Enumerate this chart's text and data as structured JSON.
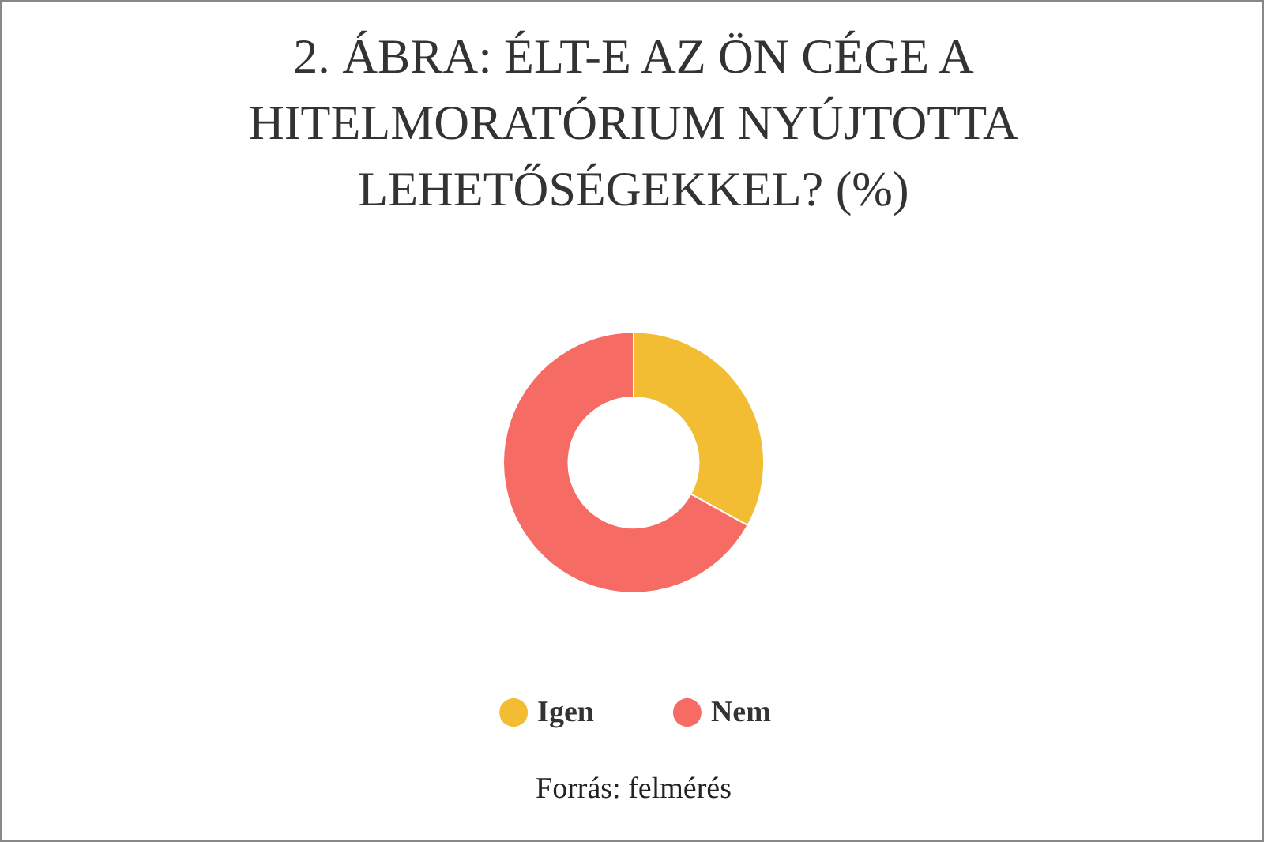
{
  "chart_data": {
    "type": "donut",
    "title": "2. ÁBRA: ÉLT-E AZ ÖN CÉGE A HITELMORATÓRIUM NYÚJTOTTA LEHETŐSÉGEKKEL? (%)",
    "categories": [
      "Igen",
      "Nem"
    ],
    "values": [
      33,
      67
    ],
    "colors": [
      "#f2bc33",
      "#f66b63"
    ],
    "legend": "bottom",
    "annotations": [
      "Forrás: felmérés"
    ]
  }
}
